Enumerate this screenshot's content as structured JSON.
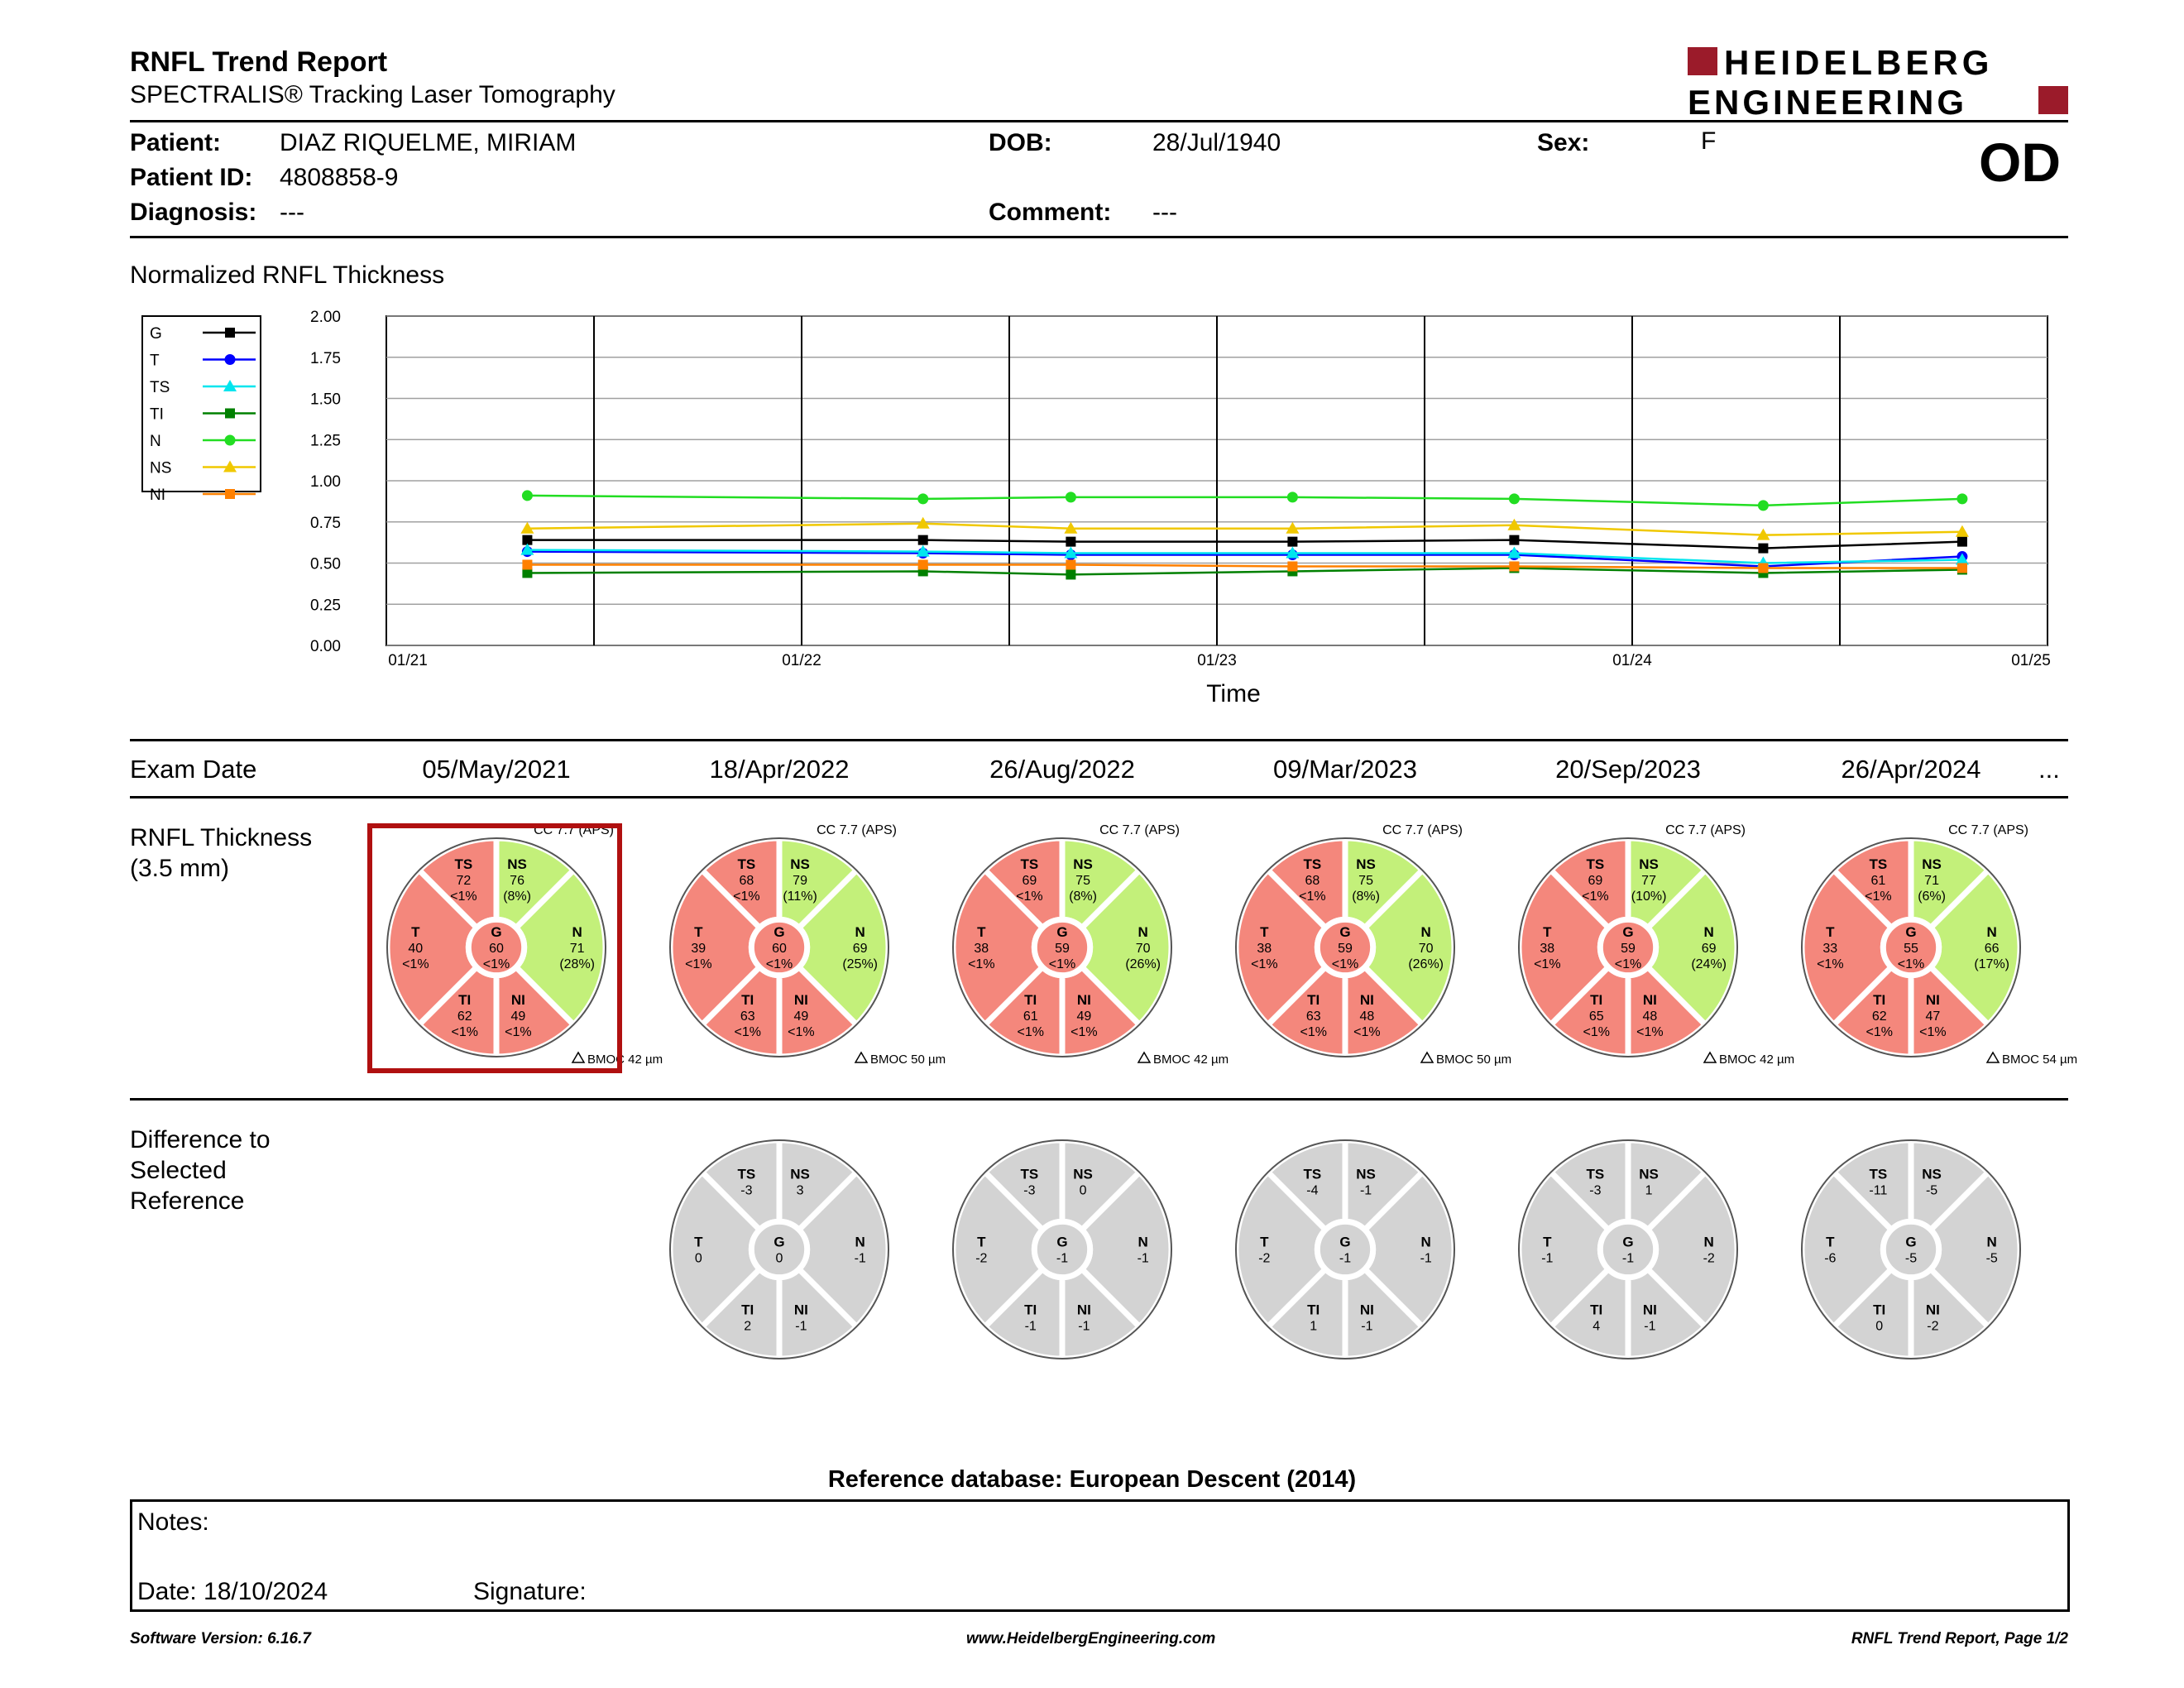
{
  "header": {
    "title": "RNFL Trend Report",
    "subtitle": "SPECTRALIS® Tracking Laser Tomography",
    "logo_line1": "HEIDELBERG",
    "logo_line2": "ENGINEERING",
    "eye": "OD"
  },
  "patient": {
    "patient_label": "Patient:",
    "patient_value": "DIAZ RIQUELME, MIRIAM",
    "id_label": "Patient ID:",
    "id_value": "4808858-9",
    "diagnosis_label": "Diagnosis:",
    "diagnosis_value": "---",
    "dob_label": "DOB:",
    "dob_value": "28/Jul/1940",
    "comment_label": "Comment:",
    "comment_value": "---",
    "sex_label": "Sex:",
    "sex_value": "F"
  },
  "chart_section_title": "Normalized RNFL Thickness",
  "chart_data": {
    "type": "line",
    "xlabel": "Time",
    "ylabel": "",
    "ylim": [
      0,
      2.0
    ],
    "yticks": [
      "2.00",
      "1.75",
      "1.50",
      "1.25",
      "1.00",
      "0.75",
      "0.50",
      "0.25",
      "0.00"
    ],
    "xticks": [
      "01/21",
      "01/22",
      "01/23",
      "01/24",
      "01/25"
    ],
    "x": [
      "05/May/2021",
      "18/Apr/2022",
      "26/Aug/2022",
      "09/Mar/2023",
      "20/Sep/2023",
      "26/Apr/2024",
      "18/10/2024"
    ],
    "legend_position": "left",
    "series": [
      {
        "name": "G",
        "color": "#000000",
        "marker": "square",
        "values": [
          0.64,
          0.64,
          0.63,
          0.63,
          0.64,
          0.59,
          0.63
        ]
      },
      {
        "name": "T",
        "color": "#0000ff",
        "marker": "circle",
        "values": [
          0.57,
          0.56,
          0.55,
          0.55,
          0.55,
          0.48,
          0.54
        ]
      },
      {
        "name": "TS",
        "color": "#00e5ee",
        "marker": "triangle",
        "values": [
          0.58,
          0.57,
          0.56,
          0.56,
          0.56,
          0.5,
          0.52
        ]
      },
      {
        "name": "TI",
        "color": "#008000",
        "marker": "square",
        "values": [
          0.44,
          0.45,
          0.43,
          0.45,
          0.47,
          0.44,
          0.46
        ]
      },
      {
        "name": "N",
        "color": "#22dd22",
        "marker": "circle",
        "values": [
          0.91,
          0.89,
          0.9,
          0.9,
          0.89,
          0.85,
          0.89
        ]
      },
      {
        "name": "NS",
        "color": "#f0c800",
        "marker": "triangle",
        "values": [
          0.71,
          0.74,
          0.71,
          0.71,
          0.73,
          0.67,
          0.69
        ]
      },
      {
        "name": "NI",
        "color": "#ff8000",
        "marker": "square",
        "values": [
          0.49,
          0.49,
          0.49,
          0.48,
          0.48,
          0.47,
          0.47
        ]
      }
    ]
  },
  "exam_label": "Exam Date",
  "exam_more": "...",
  "exam_dates": [
    "05/May/2021",
    "18/Apr/2022",
    "26/Aug/2022",
    "09/Mar/2023",
    "20/Sep/2023",
    "26/Apr/2024"
  ],
  "rnfl_label": "RNFL Thickness\n(3.5 mm)",
  "diff_label": "Difference to\nSelected\nReference",
  "colors": {
    "red": "#f4877c",
    "green": "#c3f07a",
    "gray": "#d3d3d3",
    "selected": "#b01010"
  },
  "exams": [
    {
      "cc": "CC 7.7 (APS)",
      "bmoc": "BMOC 42 µm",
      "TS": [
        "TS",
        "72",
        "<1%"
      ],
      "NS": [
        "NS",
        "76",
        "(8%)"
      ],
      "T": [
        "T",
        "40",
        "<1%"
      ],
      "G": [
        "G",
        "60",
        "<1%"
      ],
      "N": [
        "N",
        "71",
        "(28%)"
      ],
      "TI": [
        "TI",
        "62",
        "<1%"
      ],
      "NI": [
        "NI",
        "49",
        "<1%"
      ]
    },
    {
      "cc": "CC 7.7 (APS)",
      "bmoc": "BMOC 50 µm",
      "TS": [
        "TS",
        "68",
        "<1%"
      ],
      "NS": [
        "NS",
        "79",
        "(11%)"
      ],
      "T": [
        "T",
        "39",
        "<1%"
      ],
      "G": [
        "G",
        "60",
        "<1%"
      ],
      "N": [
        "N",
        "69",
        "(25%)"
      ],
      "TI": [
        "TI",
        "63",
        "<1%"
      ],
      "NI": [
        "NI",
        "49",
        "<1%"
      ]
    },
    {
      "cc": "CC 7.7 (APS)",
      "bmoc": "BMOC 42 µm",
      "TS": [
        "TS",
        "69",
        "<1%"
      ],
      "NS": [
        "NS",
        "75",
        "(8%)"
      ],
      "T": [
        "T",
        "38",
        "<1%"
      ],
      "G": [
        "G",
        "59",
        "<1%"
      ],
      "N": [
        "N",
        "70",
        "(26%)"
      ],
      "TI": [
        "TI",
        "61",
        "<1%"
      ],
      "NI": [
        "NI",
        "49",
        "<1%"
      ]
    },
    {
      "cc": "CC 7.7 (APS)",
      "bmoc": "BMOC 50 µm",
      "TS": [
        "TS",
        "68",
        "<1%"
      ],
      "NS": [
        "NS",
        "75",
        "(8%)"
      ],
      "T": [
        "T",
        "38",
        "<1%"
      ],
      "G": [
        "G",
        "59",
        "<1%"
      ],
      "N": [
        "N",
        "70",
        "(26%)"
      ],
      "TI": [
        "TI",
        "63",
        "<1%"
      ],
      "NI": [
        "NI",
        "48",
        "<1%"
      ]
    },
    {
      "cc": "CC 7.7 (APS)",
      "bmoc": "BMOC 42 µm",
      "TS": [
        "TS",
        "69",
        "<1%"
      ],
      "NS": [
        "NS",
        "77",
        "(10%)"
      ],
      "T": [
        "T",
        "38",
        "<1%"
      ],
      "G": [
        "G",
        "59",
        "<1%"
      ],
      "N": [
        "N",
        "69",
        "(24%)"
      ],
      "TI": [
        "TI",
        "65",
        "<1%"
      ],
      "NI": [
        "NI",
        "48",
        "<1%"
      ]
    },
    {
      "cc": "CC 7.7 (APS)",
      "bmoc": "BMOC 54 µm",
      "TS": [
        "TS",
        "61",
        "<1%"
      ],
      "NS": [
        "NS",
        "71",
        "(6%)"
      ],
      "T": [
        "T",
        "33",
        "<1%"
      ],
      "G": [
        "G",
        "55",
        "<1%"
      ],
      "N": [
        "N",
        "66",
        "(17%)"
      ],
      "TI": [
        "TI",
        "62",
        "<1%"
      ],
      "NI": [
        "NI",
        "47",
        "<1%"
      ]
    }
  ],
  "diffs": [
    {
      "TS": [
        "TS",
        "-3"
      ],
      "NS": [
        "NS",
        "3"
      ],
      "T": [
        "T",
        "0"
      ],
      "G": [
        "G",
        "0"
      ],
      "N": [
        "N",
        "-1"
      ],
      "TI": [
        "TI",
        "2"
      ],
      "NI": [
        "NI",
        "-1"
      ]
    },
    {
      "TS": [
        "TS",
        "-3"
      ],
      "NS": [
        "NS",
        "0"
      ],
      "T": [
        "T",
        "-2"
      ],
      "G": [
        "G",
        "-1"
      ],
      "N": [
        "N",
        "-1"
      ],
      "TI": [
        "TI",
        "-1"
      ],
      "NI": [
        "NI",
        "-1"
      ]
    },
    {
      "TS": [
        "TS",
        "-4"
      ],
      "NS": [
        "NS",
        "-1"
      ],
      "T": [
        "T",
        "-2"
      ],
      "G": [
        "G",
        "-1"
      ],
      "N": [
        "N",
        "-1"
      ],
      "TI": [
        "TI",
        "1"
      ],
      "NI": [
        "NI",
        "-1"
      ]
    },
    {
      "TS": [
        "TS",
        "-3"
      ],
      "NS": [
        "NS",
        "1"
      ],
      "T": [
        "T",
        "-1"
      ],
      "G": [
        "G",
        "-1"
      ],
      "N": [
        "N",
        "-2"
      ],
      "TI": [
        "TI",
        "4"
      ],
      "NI": [
        "NI",
        "-1"
      ]
    },
    {
      "TS": [
        "TS",
        "-11"
      ],
      "NS": [
        "NS",
        "-5"
      ],
      "T": [
        "T",
        "-6"
      ],
      "G": [
        "G",
        "-5"
      ],
      "N": [
        "N",
        "-5"
      ],
      "TI": [
        "TI",
        "0"
      ],
      "NI": [
        "NI",
        "-2"
      ]
    }
  ],
  "reference_db": "Reference database: European Descent (2014)",
  "notes": {
    "notes_label": "Notes:",
    "date_label": "Date: 18/10/2024",
    "signature_label": "Signature:"
  },
  "footer": {
    "software": "Software Version: 6.16.7",
    "website": "www.HeidelbergEngineering.com",
    "page": "RNFL Trend Report, Page 1/2"
  }
}
